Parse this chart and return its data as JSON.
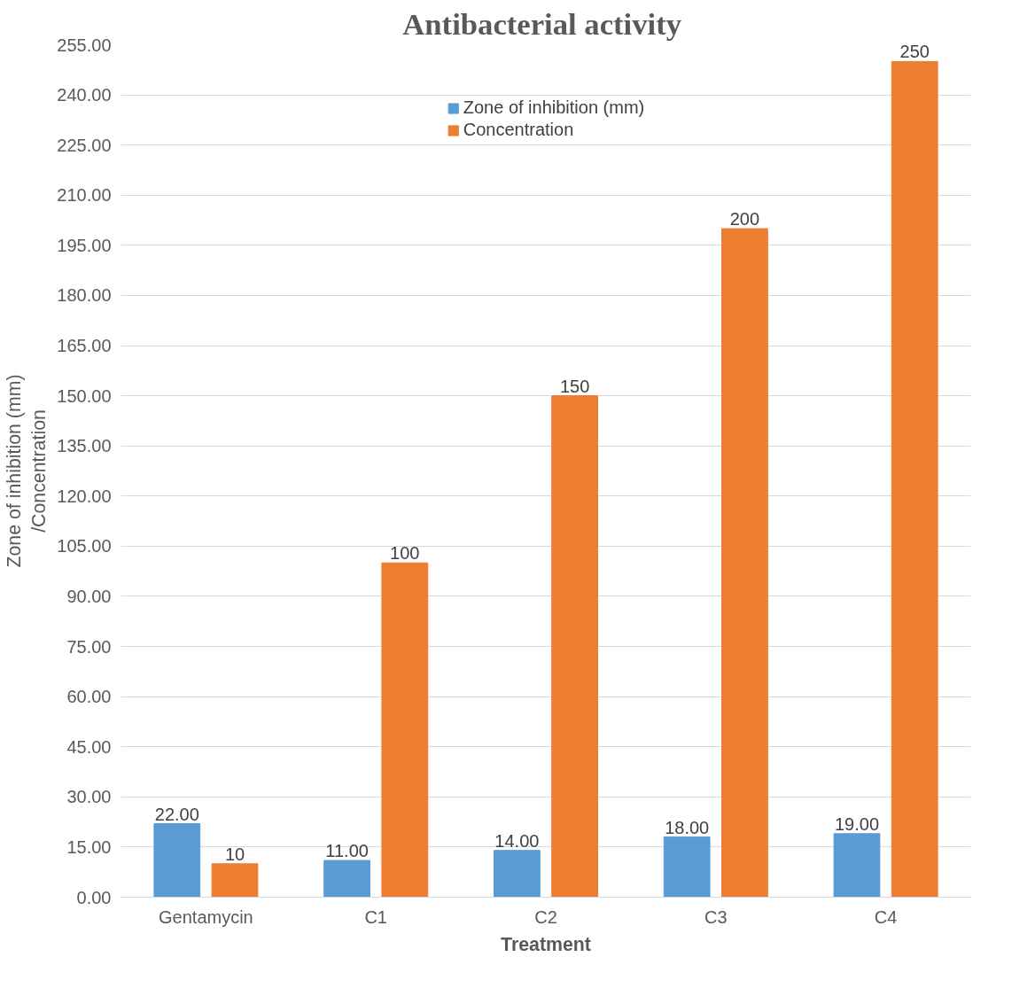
{
  "chart_data": {
    "type": "bar",
    "title": "Antibacterial  activity",
    "xlabel": "Treatment",
    "ylabel": "Zone of inhibition (mm)\n/Concentration",
    "categories": [
      "Gentamycin",
      "C1",
      "C2",
      "C3",
      "C4"
    ],
    "series": [
      {
        "name": "Zone of inhibition (mm)",
        "color": "#5b9bd5",
        "values": [
          22,
          11,
          14,
          18,
          19
        ],
        "value_labels": [
          "22.00",
          "11.00",
          "14.00",
          "18.00",
          "19.00"
        ]
      },
      {
        "name": "Concentration",
        "color": "#ed7d31",
        "values": [
          10,
          100,
          150,
          200,
          250
        ],
        "value_labels": [
          "10",
          "100",
          "150",
          "200",
          "250"
        ]
      }
    ],
    "ylim": [
      0,
      255
    ],
    "yticks": [
      {
        "value": 0,
        "label": "0.00"
      },
      {
        "value": 15,
        "label": "15.00"
      },
      {
        "value": 30,
        "label": "30.00"
      },
      {
        "value": 45,
        "label": "45.00"
      },
      {
        "value": 60,
        "label": "60.00"
      },
      {
        "value": 75,
        "label": "75.00"
      },
      {
        "value": 90,
        "label": "90.00"
      },
      {
        "value": 105,
        "label": "105.00"
      },
      {
        "value": 120,
        "label": "120.00"
      },
      {
        "value": 135,
        "label": "135.00"
      },
      {
        "value": 150,
        "label": "150.00"
      },
      {
        "value": 165,
        "label": "165.00"
      },
      {
        "value": 180,
        "label": "180.00"
      },
      {
        "value": 195,
        "label": "195.00"
      },
      {
        "value": 210,
        "label": "210.00"
      },
      {
        "value": 225,
        "label": "225.00"
      },
      {
        "value": 240,
        "label": "240.00"
      },
      {
        "value": 255,
        "label": "255.00"
      }
    ],
    "grid": "y",
    "legend": "top"
  }
}
